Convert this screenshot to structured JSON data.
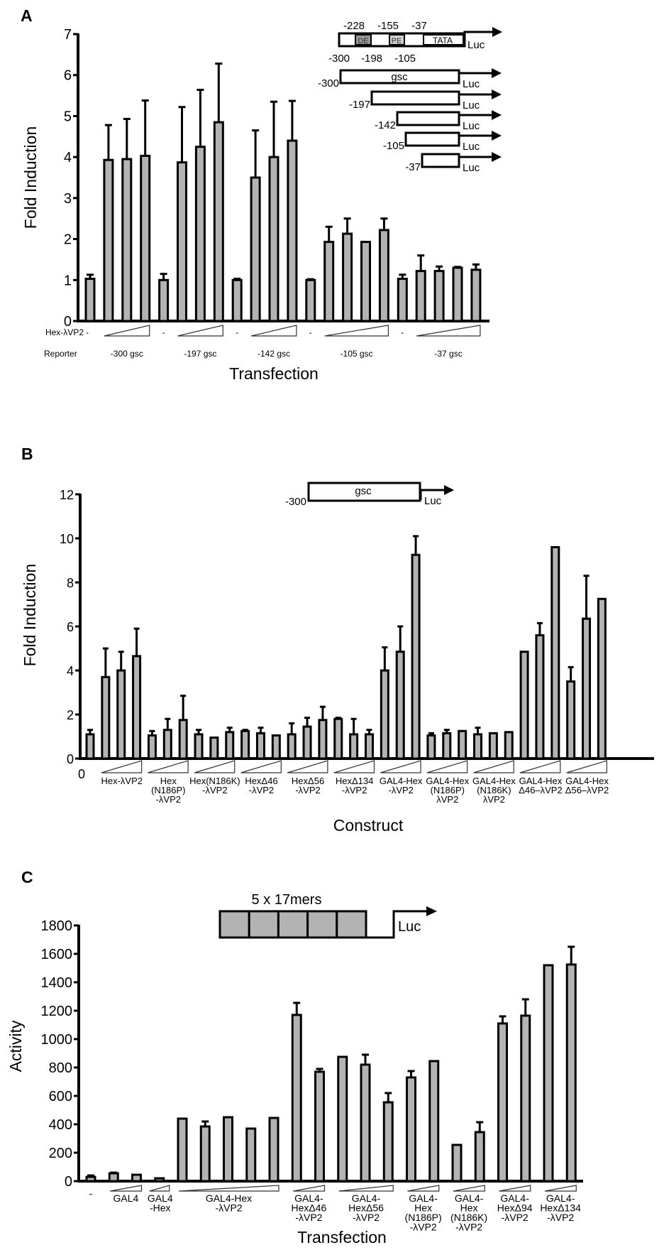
{
  "colors": {
    "bar_fill": "#b3b3b3",
    "bar_stroke": "#000000",
    "de_fill": "#999999",
    "pe_fill": "#d0d0d0"
  },
  "chart_data": [
    {
      "panel": "A",
      "type": "bar",
      "ylabel": "Fold Induction",
      "xlabel": "Transfection",
      "ylim": [
        0,
        7
      ],
      "yticks": [
        0,
        1,
        2,
        3,
        4,
        5,
        6,
        7
      ],
      "error_bars": "upper",
      "treatment_row_label": "Hex-λVP2",
      "reporter_row_label": "Reporter",
      "control_label": "-",
      "groups": [
        {
          "reporter": "-300 gsc",
          "values": [
            1.03,
            3.93,
            3.95,
            4.03
          ],
          "errors": [
            0.1,
            0.85,
            0.98,
            1.35
          ]
        },
        {
          "reporter": "-197 gsc",
          "values": [
            1.0,
            3.87,
            4.25,
            4.85
          ],
          "errors": [
            0.15,
            1.35,
            1.39,
            1.43
          ]
        },
        {
          "reporter": "-142 gsc",
          "values": [
            1.0,
            3.5,
            4.0,
            4.4
          ],
          "errors": [
            0.03,
            1.15,
            1.35,
            0.97
          ]
        },
        {
          "reporter": "-105 gsc",
          "values": [
            1.0,
            1.93,
            2.13,
            1.93,
            2.22
          ],
          "errors": [
            0.02,
            0.37,
            0.37,
            0.0,
            0.28
          ]
        },
        {
          "reporter": "-37 gsc",
          "values": [
            1.03,
            1.22,
            1.22,
            1.3,
            1.25
          ],
          "errors": [
            0.1,
            0.38,
            0.11,
            0.02,
            0.13
          ]
        }
      ],
      "diagram": {
        "top_labels": [
          "-228",
          "-155",
          "-37"
        ],
        "bottom_labels": [
          "-300",
          "-198",
          "-105"
        ],
        "elements": [
          "DE",
          "PE",
          "TATA"
        ],
        "reporter": "Luc",
        "gene": "gsc",
        "constructs": [
          "-300",
          "-197",
          "-142",
          "-105",
          "-37"
        ]
      }
    },
    {
      "panel": "B",
      "type": "bar",
      "ylabel": "Fold Induction",
      "xlabel": "Construct",
      "ylim": [
        0,
        12
      ],
      "yticks": [
        0,
        2,
        4,
        6,
        8,
        10,
        12
      ],
      "error_bars": "upper",
      "control": {
        "label": "0",
        "value": 1.1,
        "error": 0.2
      },
      "groups": [
        {
          "label": [
            "Hex-λVP2"
          ],
          "values": [
            3.7,
            4.0,
            4.65
          ],
          "errors": [
            1.3,
            0.85,
            1.25
          ]
        },
        {
          "label": [
            "Hex",
            "(N186P)",
            "-λVP2"
          ],
          "values": [
            1.05,
            1.3,
            1.75
          ],
          "errors": [
            0.2,
            0.5,
            1.1
          ]
        },
        {
          "label": [
            "Hex(N186K)",
            "-λVP2"
          ],
          "values": [
            1.1,
            0.95,
            1.2
          ],
          "errors": [
            0.2,
            0.0,
            0.2
          ]
        },
        {
          "label": [
            "HexΔ46",
            "-λVP2"
          ],
          "values": [
            1.25,
            1.15,
            1.05
          ],
          "errors": [
            0.05,
            0.25,
            0.0
          ]
        },
        {
          "label": [
            "HexΔ56",
            "-λVP2"
          ],
          "values": [
            1.1,
            1.45,
            1.75
          ],
          "errors": [
            0.5,
            0.4,
            0.6
          ]
        },
        {
          "label": [
            "HexΔ134",
            "-λVP2"
          ],
          "values": [
            1.8,
            1.1,
            1.1
          ],
          "errors": [
            0.05,
            0.7,
            0.2
          ]
        },
        {
          "label": [
            "GAL4-Hex",
            "-λVP2"
          ],
          "values": [
            4.0,
            4.85,
            9.25
          ],
          "errors": [
            1.05,
            1.15,
            0.85
          ]
        },
        {
          "label": [
            "GAL4-Hex",
            "(N186P)",
            "λVP2"
          ],
          "values": [
            1.05,
            1.15,
            1.25
          ],
          "errors": [
            0.1,
            0.15,
            0.0
          ]
        },
        {
          "label": [
            "GAL4-Hex",
            "(N186K)",
            "λVP2"
          ],
          "values": [
            1.1,
            1.15,
            1.2
          ],
          "errors": [
            0.3,
            0.0,
            0.0
          ]
        },
        {
          "label": [
            "GAL4-Hex",
            "Δ46–λVP2"
          ],
          "values": [
            4.85,
            5.6,
            9.6
          ],
          "errors": [
            0.0,
            0.55,
            0.0
          ]
        },
        {
          "label": [
            "GAL4-Hex",
            "Δ56–λVP2"
          ],
          "values": [
            3.5,
            6.35,
            7.25
          ],
          "errors": [
            0.65,
            1.95,
            0.0
          ]
        }
      ],
      "diagram": {
        "start": "-300",
        "gene": "gsc",
        "reporter": "Luc"
      }
    },
    {
      "panel": "C",
      "type": "bar",
      "ylabel": "Activity",
      "xlabel": "Transfection",
      "ylim": [
        0,
        1800
      ],
      "yticks": [
        0,
        200,
        400,
        600,
        800,
        1000,
        1200,
        1400,
        1600,
        1800
      ],
      "error_bars": "upper",
      "control": {
        "label": "-",
        "value": 30,
        "error": 10
      },
      "groups": [
        {
          "label": [
            "GAL4"
          ],
          "values": [
            55,
            45
          ],
          "errors": [
            5,
            0
          ]
        },
        {
          "label": [
            "GAL4",
            "-Hex"
          ],
          "values": [
            20
          ],
          "errors": [
            0
          ]
        },
        {
          "label": [
            "GAL4-Hex",
            "-λVP2"
          ],
          "values": [
            440,
            385,
            450,
            370,
            445
          ],
          "errors": [
            0,
            35,
            0,
            0,
            0
          ]
        },
        {
          "label": [
            "GAL4-",
            "HexΔ46",
            "-λVP2"
          ],
          "values": [
            1170,
            770
          ],
          "errors": [
            85,
            20
          ]
        },
        {
          "label": [
            "GAL4-",
            "HexΔ56",
            "-λVP2"
          ],
          "values": [
            875,
            820,
            555
          ],
          "errors": [
            0,
            70,
            65
          ]
        },
        {
          "label": [
            "GAL4-",
            "Hex",
            "(N186P)",
            "-λVP2"
          ],
          "values": [
            730,
            845
          ],
          "errors": [
            45,
            0
          ]
        },
        {
          "label": [
            "GAL4-",
            "Hex",
            "(N186K)",
            "-λVP2"
          ],
          "values": [
            255,
            345
          ],
          "errors": [
            0,
            70
          ]
        },
        {
          "label": [
            "GAL4-",
            "HexΔ94",
            "-λVP2"
          ],
          "values": [
            1110,
            1165
          ],
          "errors": [
            50,
            115
          ]
        },
        {
          "label": [
            "GAL4-",
            "HexΔ134",
            "-λVP2"
          ],
          "values": [
            1520,
            1525
          ],
          "errors": [
            0,
            125
          ]
        }
      ],
      "diagram": {
        "label": "5 x 17mers",
        "repeats": 5,
        "reporter": "Luc"
      }
    }
  ]
}
